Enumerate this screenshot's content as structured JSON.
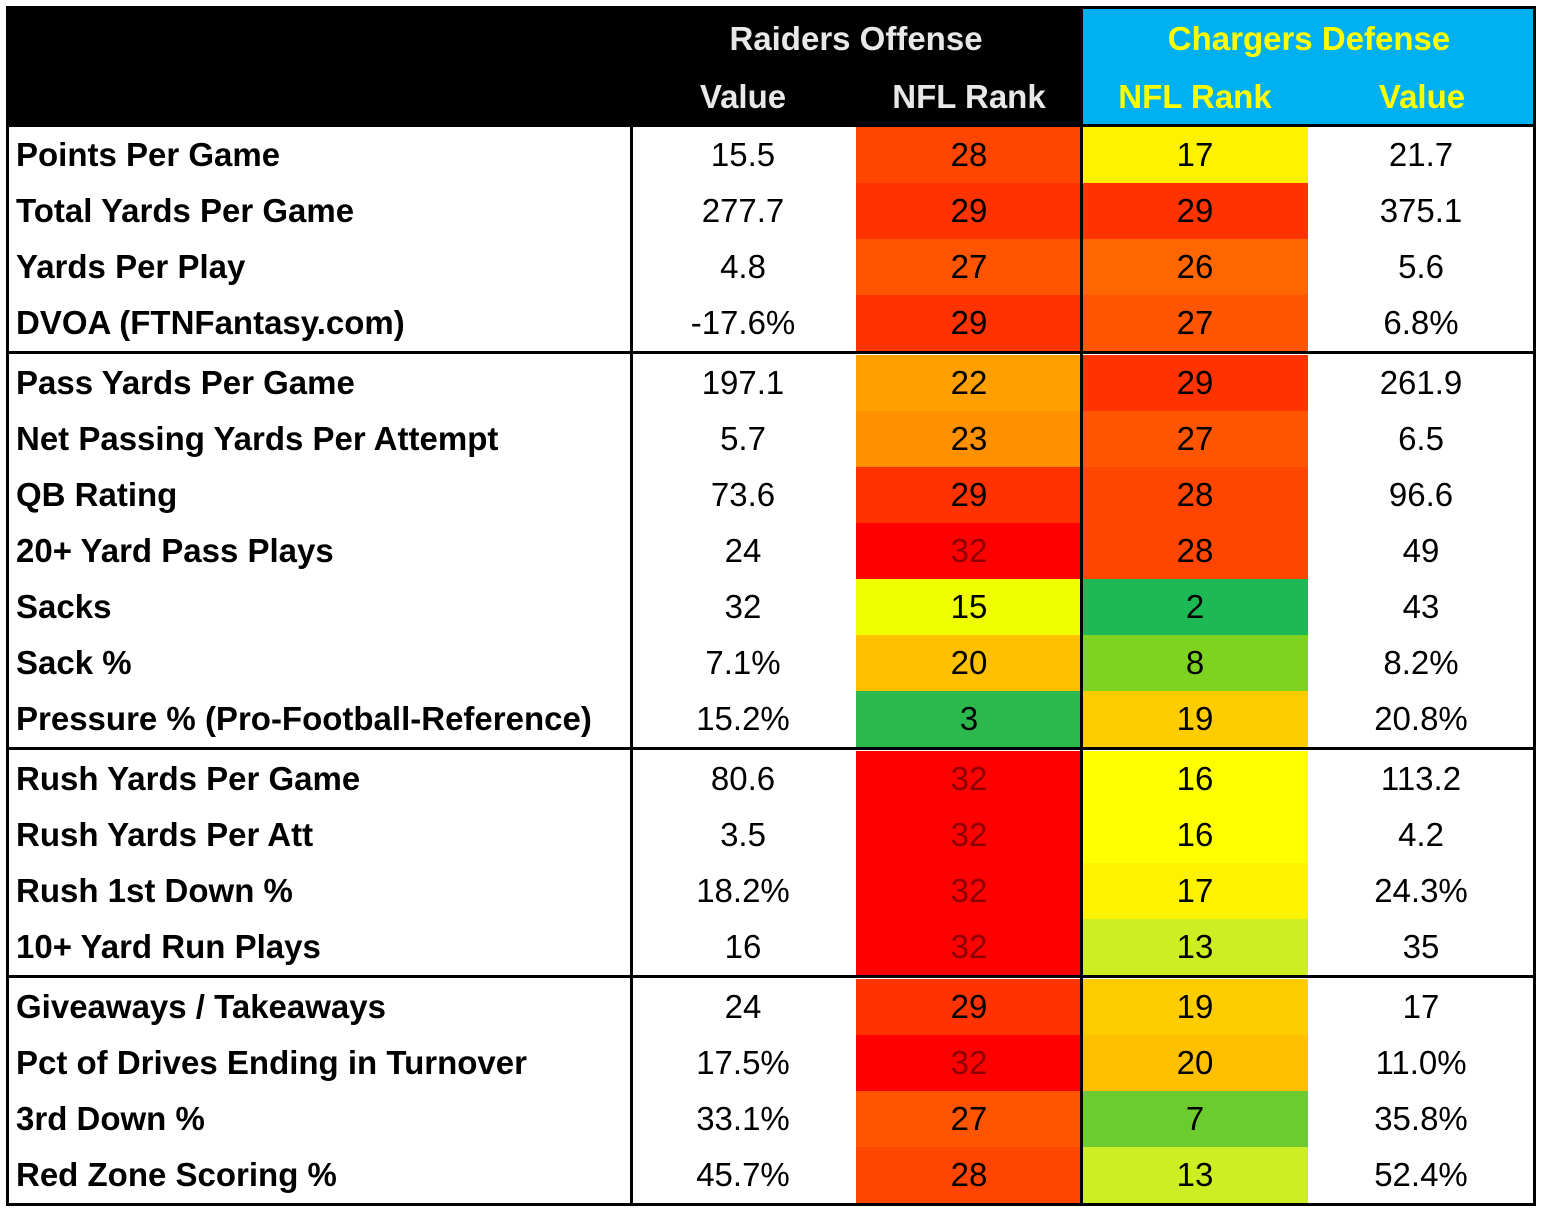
{
  "chart_data": {
    "type": "table",
    "headers": {
      "offense_group": "Raiders Offense",
      "defense_group": "Chargers Defense",
      "offense_value": "Value",
      "offense_rank": "NFL Rank",
      "defense_rank": "NFL Rank",
      "defense_value": "Value"
    },
    "colors": {
      "header_offense_bg": "#000000",
      "header_defense_bg": "#00B0F0",
      "header_offense_text": "#E8E8E8",
      "header_defense_text": "#FFFF00"
    },
    "sections": [
      [
        {
          "label": "Points Per Game",
          "off_value": "15.5",
          "off_rank": "28",
          "def_rank": "17",
          "def_value": "21.7",
          "off_color": "#FF4500",
          "def_color": "#FFF200"
        },
        {
          "label": "Total Yards Per Game",
          "off_value": "277.7",
          "off_rank": "29",
          "def_rank": "29",
          "def_value": "375.1",
          "off_color": "#FF3300",
          "def_color": "#FF3300"
        },
        {
          "label": "Yards Per Play",
          "off_value": "4.8",
          "off_rank": "27",
          "def_rank": "26",
          "def_value": "5.6",
          "off_color": "#FF5500",
          "def_color": "#FF6600"
        },
        {
          "label": "DVOA (FTNFantasy.com)",
          "off_value": "-17.6%",
          "off_rank": "29",
          "def_rank": "27",
          "def_value": "6.8%",
          "off_color": "#FF3300",
          "def_color": "#FF5500"
        }
      ],
      [
        {
          "label": "Pass Yards Per Game",
          "off_value": "197.1",
          "off_rank": "22",
          "def_rank": "29",
          "def_value": "261.9",
          "off_color": "#FFA000",
          "def_color": "#FF3300"
        },
        {
          "label": "Net Passing Yards Per Attempt",
          "off_value": "5.7",
          "off_rank": "23",
          "def_rank": "27",
          "def_value": "6.5",
          "off_color": "#FF9000",
          "def_color": "#FF5500"
        },
        {
          "label": "QB Rating",
          "off_value": "73.6",
          "off_rank": "29",
          "def_rank": "28",
          "def_value": "96.6",
          "off_color": "#FF3300",
          "def_color": "#FF4500"
        },
        {
          "label": "20+ Yard Pass Plays",
          "off_value": "24",
          "off_rank": "32",
          "def_rank": "28",
          "def_value": "49",
          "off_color": "#FF0000",
          "def_color": "#FF4500"
        },
        {
          "label": "Sacks",
          "off_value": "32",
          "off_rank": "15",
          "def_rank": "2",
          "def_value": "43",
          "off_color": "#F0FF00",
          "def_color": "#1DB954"
        },
        {
          "label": "Sack %",
          "off_value": "7.1%",
          "off_rank": "20",
          "def_rank": "8",
          "def_value": "8.2%",
          "off_color": "#FFC000",
          "def_color": "#7ED321"
        },
        {
          "label": "Pressure % (Pro-Football-Reference)",
          "off_value": "15.2%",
          "off_rank": "3",
          "def_rank": "19",
          "def_value": "20.8%",
          "off_color": "#2DB84D",
          "def_color": "#FFCC00"
        }
      ],
      [
        {
          "label": "Rush Yards Per Game",
          "off_value": "80.6",
          "off_rank": "32",
          "def_rank": "16",
          "def_value": "113.2",
          "off_color": "#FF0000",
          "def_color": "#FFFF00"
        },
        {
          "label": "Rush Yards Per Att",
          "off_value": "3.5",
          "off_rank": "32",
          "def_rank": "16",
          "def_value": "4.2",
          "off_color": "#FF0000",
          "def_color": "#FFFF00"
        },
        {
          "label": "Rush 1st Down %",
          "off_value": "18.2%",
          "off_rank": "32",
          "def_rank": "17",
          "def_value": "24.3%",
          "off_color": "#FF0000",
          "def_color": "#FFF200"
        },
        {
          "label": "10+ Yard Run Plays",
          "off_value": "16",
          "off_rank": "32",
          "def_rank": "13",
          "def_value": "35",
          "off_color": "#FF0000",
          "def_color": "#CCEE22"
        }
      ],
      [
        {
          "label": "Giveaways / Takeaways",
          "off_value": "24",
          "off_rank": "29",
          "def_rank": "19",
          "def_value": "17",
          "off_color": "#FF3300",
          "def_color": "#FFCC00"
        },
        {
          "label": "Pct of Drives Ending in Turnover",
          "off_value": "17.5%",
          "off_rank": "32",
          "def_rank": "20",
          "def_value": "11.0%",
          "off_color": "#FF0000",
          "def_color": "#FFC000"
        },
        {
          "label": "3rd Down %",
          "off_value": "33.1%",
          "off_rank": "27",
          "def_rank": "7",
          "def_value": "35.8%",
          "off_color": "#FF5500",
          "def_color": "#6CCB2F"
        },
        {
          "label": "Red Zone Scoring %",
          "off_value": "45.7%",
          "off_rank": "28",
          "def_rank": "13",
          "def_value": "52.4%",
          "off_color": "#FF4500",
          "def_color": "#CCEE22"
        }
      ]
    ]
  }
}
